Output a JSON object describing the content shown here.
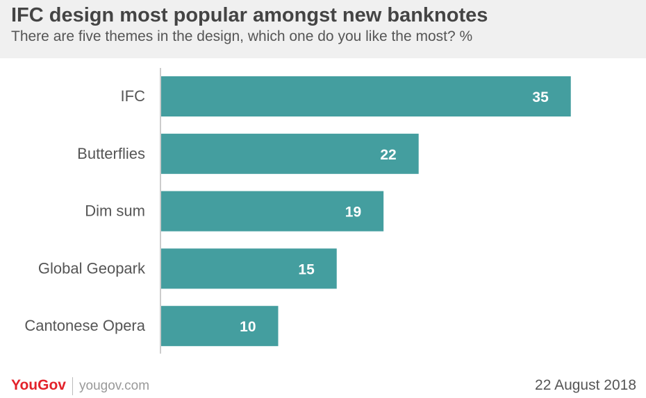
{
  "header": {
    "title": "IFC design most popular amongst new banknotes",
    "subtitle": "There are five themes in the design, which one do you like the most? %"
  },
  "chart_data": {
    "type": "bar",
    "orientation": "horizontal",
    "categories": [
      "IFC",
      "Butterflies",
      "Dim sum",
      "Global Geopark",
      "Cantonese Opera"
    ],
    "values": [
      35,
      22,
      19,
      15,
      10
    ],
    "data_labels": [
      "35",
      "22",
      "19",
      "15",
      "10"
    ],
    "xlim": [
      0,
      40
    ],
    "bar_color": "#449e9f",
    "label_color": "#ffffff",
    "category_color": "#555555",
    "axis_color": "#cccccc",
    "grid": false,
    "legend": "none"
  },
  "footer": {
    "logo": "YouGov",
    "site": "yougov.com",
    "date": "22 August 2018"
  }
}
